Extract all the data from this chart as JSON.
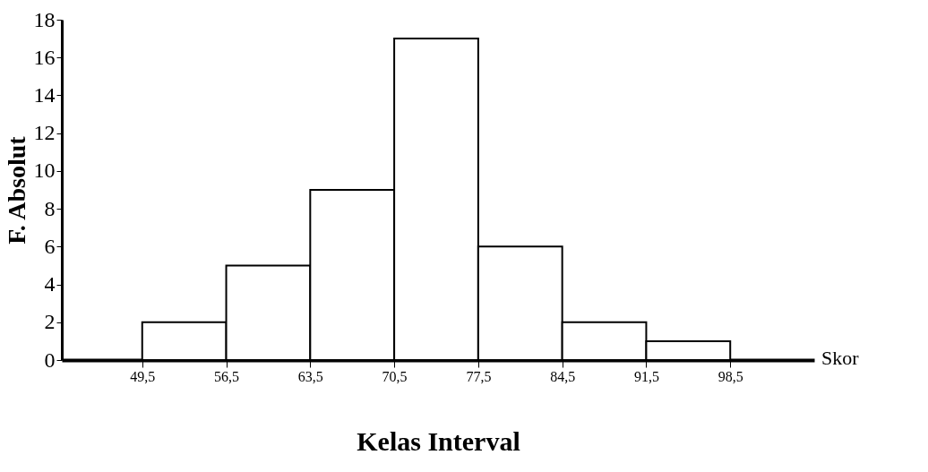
{
  "chart_data": {
    "type": "histogram",
    "xlabel": "Kelas Interval",
    "ylabel": "F. Absolut",
    "annotations": [
      "Skor"
    ],
    "bins": [
      49.5,
      56.5,
      63.5,
      70.5,
      77.5,
      84.5,
      91.5,
      98.5
    ],
    "values": [
      2,
      5,
      9,
      17,
      6,
      2,
      1
    ],
    "color": "#ffffff",
    "xlim": [
      42.8,
      105.5
    ],
    "xticks": [
      {
        "value": 49.5,
        "label": "49,5"
      },
      {
        "value": 56.5,
        "label": "56,5"
      },
      {
        "value": 63.5,
        "label": "63,5"
      },
      {
        "value": 70.5,
        "label": "70,5"
      },
      {
        "value": 77.5,
        "label": "77,5"
      },
      {
        "value": 84.5,
        "label": "84,5"
      },
      {
        "value": 91.5,
        "label": "91,5"
      },
      {
        "value": 98.5,
        "label": "98,5"
      }
    ],
    "ylim": [
      0,
      18
    ],
    "yticks": [
      0,
      2,
      4,
      6,
      8,
      10,
      12,
      14,
      16,
      18
    ],
    "grid": false
  }
}
